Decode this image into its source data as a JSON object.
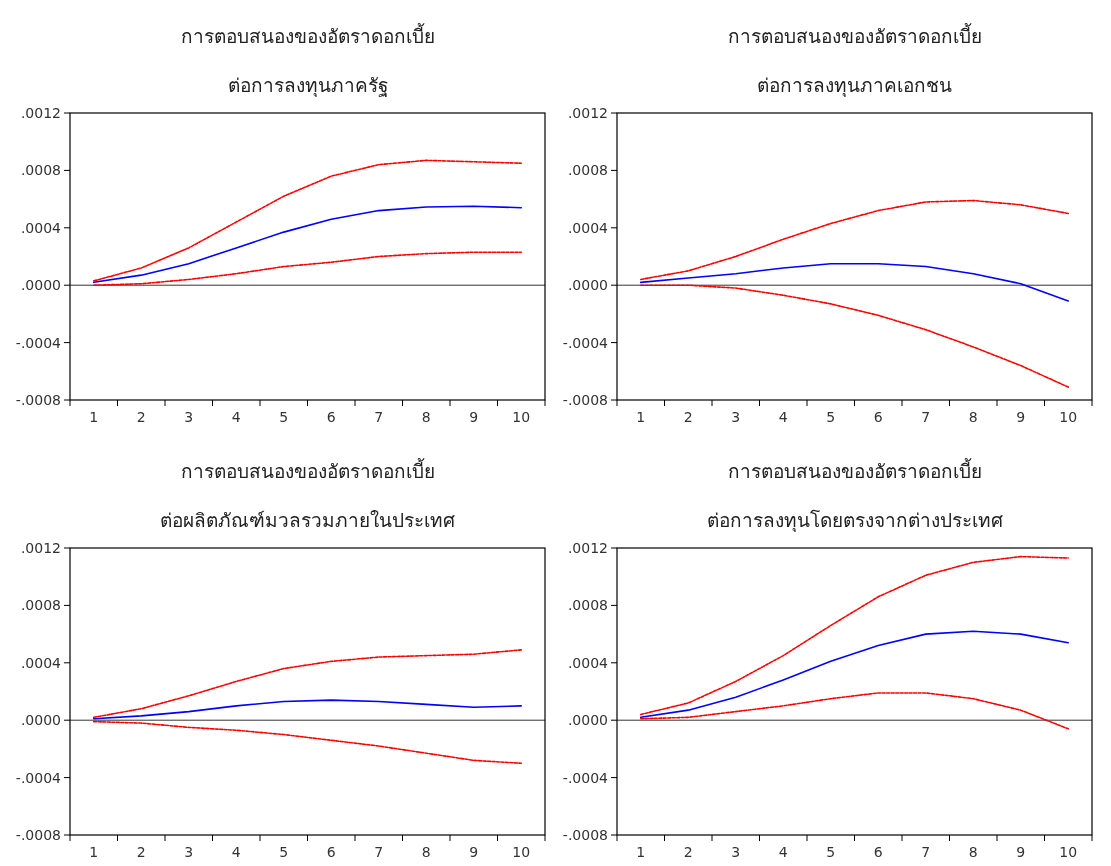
{
  "chart_data": [
    {
      "type": "line",
      "title": "การตอบสนองของอัตราดอกเบี้ย",
      "subtitle": "ต่อการลงทุนภาครัฐ",
      "categories": [
        "1",
        "2",
        "3",
        "4",
        "5",
        "6",
        "7",
        "8",
        "9",
        "10"
      ],
      "series": [
        {
          "color": "#0000ff",
          "line_style": "solid",
          "values": [
            2e-05,
            7e-05,
            0.00015,
            0.00026,
            0.00037,
            0.00046,
            0.00052,
            0.000545,
            0.00055,
            0.00054
          ]
        },
        {
          "color": "#ff0000",
          "line_style": "dashed",
          "values": [
            3e-05,
            0.00012,
            0.00026,
            0.00044,
            0.00062,
            0.00076,
            0.00084,
            0.00087,
            0.00086,
            0.00085
          ]
        },
        {
          "color": "#ff0000",
          "line_style": "dashed",
          "values": [
            0,
            1e-05,
            4e-05,
            8e-05,
            0.00013,
            0.00016,
            0.0002,
            0.00022,
            0.00023,
            0.00023
          ]
        }
      ],
      "ylim": [
        -0.0008,
        0.0012
      ],
      "yticks": [
        {
          "value": -0.0008,
          "label": "-.0008"
        },
        {
          "value": -0.0004,
          "label": "-.0004"
        },
        {
          "value": 0,
          "label": ".0000"
        },
        {
          "value": 0.0004,
          "label": ".0004"
        },
        {
          "value": 0.0008,
          "label": ".0008"
        },
        {
          "value": 0.0012,
          "label": ".0012"
        }
      ],
      "ref_lines": [
        {
          "axis": "y",
          "value": 0,
          "color": "#000000"
        }
      ],
      "grid": false
    },
    {
      "type": "line",
      "title": "การตอบสนองของอัตราดอกเบี้ย",
      "subtitle": "ต่อการลงทุนภาคเอกชน",
      "categories": [
        "1",
        "2",
        "3",
        "4",
        "5",
        "6",
        "7",
        "8",
        "9",
        "10"
      ],
      "series": [
        {
          "color": "#0000ff",
          "line_style": "solid",
          "values": [
            2e-05,
            5e-05,
            8e-05,
            0.00012,
            0.00015,
            0.00015,
            0.00013,
            8e-05,
            1e-05,
            -0.00011
          ]
        },
        {
          "color": "#ff0000",
          "line_style": "dashed",
          "values": [
            4e-05,
            0.0001,
            0.0002,
            0.00032,
            0.00043,
            0.00052,
            0.00058,
            0.00059,
            0.00056,
            0.0005
          ]
        },
        {
          "color": "#ff0000",
          "line_style": "dashed",
          "values": [
            0,
            0,
            -2e-05,
            -7e-05,
            -0.00013,
            -0.00021,
            -0.00031,
            -0.00043,
            -0.00056,
            -0.00071
          ]
        }
      ],
      "ylim": [
        -0.0008,
        0.0012
      ],
      "yticks": [
        {
          "value": -0.0008,
          "label": "-.0008"
        },
        {
          "value": -0.0004,
          "label": "-.0004"
        },
        {
          "value": 0,
          "label": ".0000"
        },
        {
          "value": 0.0004,
          "label": ".0004"
        },
        {
          "value": 0.0008,
          "label": ".0008"
        },
        {
          "value": 0.0012,
          "label": ".0012"
        }
      ],
      "ref_lines": [
        {
          "axis": "y",
          "value": 0,
          "color": "#000000"
        }
      ],
      "grid": false
    },
    {
      "type": "line",
      "title": "การตอบสนองของอัตราดอกเบี้ย",
      "subtitle": "ต่อผลิตภัณฑ์มวลรวมภายในประเทศ",
      "categories": [
        "1",
        "2",
        "3",
        "4",
        "5",
        "6",
        "7",
        "8",
        "9",
        "10"
      ],
      "series": [
        {
          "color": "#0000ff",
          "line_style": "solid",
          "values": [
            1e-05,
            3e-05,
            6e-05,
            0.0001,
            0.00013,
            0.00014,
            0.00013,
            0.00011,
            9e-05,
            0.0001
          ]
        },
        {
          "color": "#ff0000",
          "line_style": "dashed",
          "values": [
            2e-05,
            8e-05,
            0.00017,
            0.00027,
            0.00036,
            0.00041,
            0.00044,
            0.00045,
            0.00046,
            0.00049
          ]
        },
        {
          "color": "#ff0000",
          "line_style": "dashed",
          "values": [
            -1e-05,
            -2e-05,
            -5e-05,
            -7e-05,
            -0.0001,
            -0.00014,
            -0.00018,
            -0.00023,
            -0.00028,
            -0.0003
          ]
        }
      ],
      "ylim": [
        -0.0008,
        0.0012
      ],
      "yticks": [
        {
          "value": -0.0008,
          "label": "-.0008"
        },
        {
          "value": -0.0004,
          "label": "-.0004"
        },
        {
          "value": 0,
          "label": ".0000"
        },
        {
          "value": 0.0004,
          "label": ".0004"
        },
        {
          "value": 0.0008,
          "label": ".0008"
        },
        {
          "value": 0.0012,
          "label": ".0012"
        }
      ],
      "ref_lines": [
        {
          "axis": "y",
          "value": 0,
          "color": "#000000"
        }
      ],
      "grid": false
    },
    {
      "type": "line",
      "title": "การตอบสนองของอัตราดอกเบี้ย",
      "subtitle": "ต่อการลงทุนโดยตรงจากต่างประเทศ",
      "categories": [
        "1",
        "2",
        "3",
        "4",
        "5",
        "6",
        "7",
        "8",
        "9",
        "10"
      ],
      "series": [
        {
          "color": "#0000ff",
          "line_style": "solid",
          "values": [
            2e-05,
            7e-05,
            0.00016,
            0.00028,
            0.00041,
            0.00052,
            0.0006,
            0.00062,
            0.0006,
            0.00054
          ]
        },
        {
          "color": "#ff0000",
          "line_style": "dashed",
          "values": [
            4e-05,
            0.00012,
            0.00027,
            0.00045,
            0.00066,
            0.00086,
            0.00101,
            0.0011,
            0.00114,
            0.00113
          ]
        },
        {
          "color": "#ff0000",
          "line_style": "dashed",
          "values": [
            1e-05,
            2e-05,
            6e-05,
            0.0001,
            0.00015,
            0.00019,
            0.00019,
            0.00015,
            7e-05,
            -6e-05
          ]
        }
      ],
      "ylim": [
        -0.0008,
        0.0012
      ],
      "yticks": [
        {
          "value": -0.0008,
          "label": "-.0008"
        },
        {
          "value": -0.0004,
          "label": "-.0004"
        },
        {
          "value": 0,
          "label": ".0000"
        },
        {
          "value": 0.0004,
          "label": ".0004"
        },
        {
          "value": 0.0008,
          "label": ".0008"
        },
        {
          "value": 0.0012,
          "label": ".0012"
        }
      ],
      "ref_lines": [
        {
          "axis": "y",
          "value": 0,
          "color": "#000000"
        }
      ],
      "grid": false
    }
  ]
}
